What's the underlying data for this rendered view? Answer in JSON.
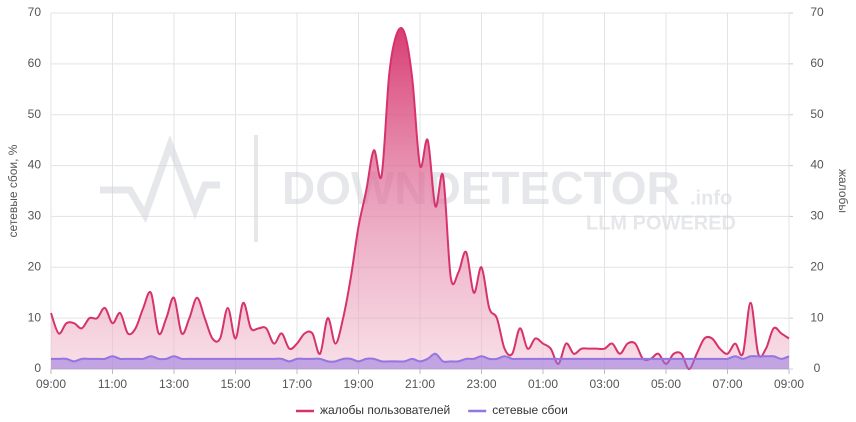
{
  "chart_data": {
    "type": "area",
    "y_label": "сетевые сбои, %",
    "y2_label": "жалобы",
    "watermark": {
      "brand": "DOWNDETECTOR",
      "suffix": ".info",
      "tagline": "LLM POWERED"
    },
    "x": [
      0,
      0.25,
      0.5,
      0.75,
      1,
      1.25,
      1.5,
      1.75,
      2,
      2.25,
      2.5,
      2.75,
      3,
      3.25,
      3.5,
      3.75,
      4,
      4.25,
      4.5,
      4.75,
      5,
      5.25,
      5.5,
      5.75,
      6,
      6.25,
      6.5,
      6.75,
      7,
      7.25,
      7.5,
      7.75,
      8,
      8.25,
      8.5,
      8.75,
      9,
      9.25,
      9.5,
      9.75,
      10,
      10.25,
      10.5,
      10.75,
      11,
      11.25,
      11.5,
      11.75,
      12,
      12.25,
      12.5,
      12.75,
      13,
      13.25,
      13.5,
      13.75,
      14,
      14.25,
      14.5,
      14.75,
      15,
      15.25,
      15.5,
      15.75,
      16,
      16.25,
      16.5,
      16.75,
      17,
      17.25,
      17.5,
      17.75,
      18,
      18.25,
      18.5,
      18.75,
      19,
      19.25,
      19.5,
      19.75,
      20,
      20.25,
      20.5,
      20.75,
      21,
      21.25,
      21.5,
      21.75,
      22,
      22.25,
      22.5,
      22.75,
      23,
      23.25,
      23.5,
      23.75,
      24
    ],
    "xlim": [
      0,
      24
    ],
    "xticks": [
      {
        "value": 0,
        "label": "09:00"
      },
      {
        "value": 2,
        "label": "11:00"
      },
      {
        "value": 4,
        "label": "13:00"
      },
      {
        "value": 6,
        "label": "15:00"
      },
      {
        "value": 8,
        "label": "17:00"
      },
      {
        "value": 10,
        "label": "19:00"
      },
      {
        "value": 12,
        "label": "21:00"
      },
      {
        "value": 14,
        "label": "23:00"
      },
      {
        "value": 16,
        "label": "01:00"
      },
      {
        "value": 18,
        "label": "03:00"
      },
      {
        "value": 20,
        "label": "05:00"
      },
      {
        "value": 22,
        "label": "07:00"
      },
      {
        "value": 24,
        "label": "09:00"
      }
    ],
    "ylim": [
      0,
      70
    ],
    "yticks": [
      0,
      10,
      20,
      30,
      40,
      50,
      60,
      70
    ],
    "y2lim": [
      0,
      70
    ],
    "y2ticks": [
      0,
      10,
      20,
      30,
      40,
      50,
      60,
      70
    ],
    "grid": true,
    "legend": "bottom",
    "series": [
      {
        "name": "жалобы пользователей",
        "color": "#d6336c",
        "axis": "y2",
        "values": [
          11,
          7,
          9,
          9,
          8,
          10,
          10,
          12,
          9,
          11,
          7,
          8,
          12,
          15,
          7,
          10,
          14,
          7,
          10,
          14,
          10,
          6,
          6,
          12,
          6,
          13,
          8,
          8,
          8,
          5,
          7,
          4,
          5,
          7,
          7,
          3,
          10,
          5,
          10,
          18,
          28,
          35,
          43,
          38,
          58,
          66,
          66,
          57,
          40,
          45,
          32,
          38,
          18,
          19,
          23,
          15,
          20,
          12,
          10,
          4,
          3,
          8,
          4,
          6,
          5,
          4,
          1,
          5,
          3,
          4,
          4,
          4,
          4,
          5,
          3,
          5,
          5,
          2,
          2,
          3,
          1,
          3,
          3,
          0,
          3,
          6,
          6,
          4,
          3,
          5,
          3,
          13,
          3,
          4,
          8,
          7,
          6
        ]
      },
      {
        "name": "сетевые сбои",
        "color": "#9575e0",
        "values": [
          2,
          2,
          2,
          1.5,
          2,
          2,
          2,
          2,
          2.5,
          2,
          2,
          2,
          2,
          2.5,
          2,
          2,
          2.5,
          2,
          2,
          2,
          2,
          2,
          2,
          2,
          2,
          2,
          2,
          2,
          2,
          2,
          2,
          1.5,
          2,
          2,
          2,
          2,
          1.5,
          1.5,
          2,
          2,
          1.5,
          2,
          2,
          1.5,
          1.5,
          1.5,
          1.5,
          2,
          1.5,
          2,
          3,
          1.5,
          1.5,
          1.5,
          2,
          2,
          2.5,
          2,
          2,
          2.5,
          2,
          2,
          2,
          2,
          2,
          2,
          2,
          2,
          2,
          2,
          2,
          2,
          2,
          2,
          2,
          2,
          2,
          2,
          2,
          2,
          2,
          2,
          2,
          2,
          2,
          2,
          2,
          2,
          2,
          2.5,
          2,
          2.5,
          2.5,
          2.5,
          2.5,
          2,
          2.5
        ]
      }
    ]
  }
}
